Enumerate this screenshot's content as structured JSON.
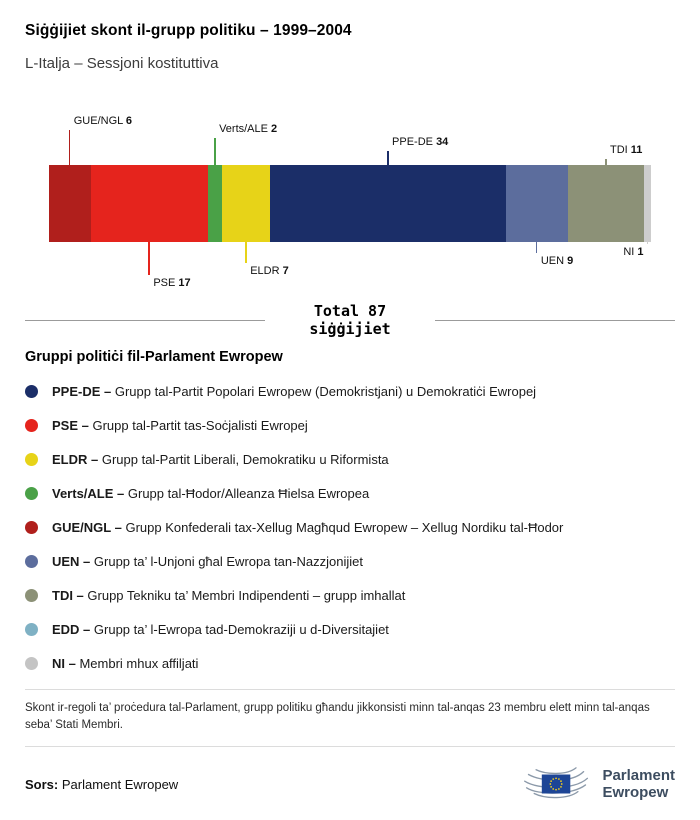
{
  "header": {
    "title": "Siġġijiet skont il-grupp politiku – 1999–2004",
    "subtitle": "L-Italja – Sessjoni kostituttiva"
  },
  "chart_data": {
    "type": "bar",
    "variant": "stacked-horizontal-single-bar",
    "title": "Siġġijiet skont il-grupp politiku – 1999–2004",
    "subtitle": "L-Italja – Sessjoni kostituttiva",
    "total_seats": 87,
    "total_line1": "Total 87",
    "total_line2": "siġġijiet",
    "segments": [
      {
        "group": "GUE/NGL",
        "seats": 6,
        "color": "#b01f1c",
        "label_position": "above"
      },
      {
        "group": "PSE",
        "seats": 17,
        "color": "#e5241d",
        "label_position": "below"
      },
      {
        "group": "Verts/ALE",
        "seats": 2,
        "color": "#4aa147",
        "label_position": "above"
      },
      {
        "group": "ELDR",
        "seats": 7,
        "color": "#e7d318",
        "label_position": "below"
      },
      {
        "group": "PPE-DE",
        "seats": 34,
        "color": "#1b2e68",
        "label_position": "above"
      },
      {
        "group": "UEN",
        "seats": 9,
        "color": "#5c6d9d",
        "label_position": "below"
      },
      {
        "group": "TDI",
        "seats": 11,
        "color": "#8c9177",
        "label_position": "above"
      },
      {
        "group": "NI",
        "seats": 1,
        "color": "#cdcdcd",
        "label_position": "below",
        "label_align": "right"
      }
    ]
  },
  "legend": {
    "title": "Gruppi politiċi fil-Parlament Ewropew",
    "items": [
      {
        "abbr": "PPE-DE –",
        "desc": "Grupp tal-Partit Popolari Ewropew (Demokristjani) u Demokratiċi Ewropej",
        "color": "#1b2e68"
      },
      {
        "abbr": "PSE –",
        "desc": "Grupp tal-Partit tas-Soċjalisti Ewropej",
        "color": "#e5241d"
      },
      {
        "abbr": "ELDR –",
        "desc": "Grupp tal-Partit Liberali, Demokratiku u Riformista",
        "color": "#e7d318"
      },
      {
        "abbr": "Verts/ALE –",
        "desc": "Grupp tal-Ħodor/Alleanza Ħielsa Ewropea",
        "color": "#4aa147"
      },
      {
        "abbr": "GUE/NGL –",
        "desc": "Grupp Konfederali tax-Xellug Magħqud Ewropew – Xellug Nordiku tal-Ħodor",
        "color": "#b01f1c"
      },
      {
        "abbr": "UEN –",
        "desc": "Grupp ta’ l-Unjoni għal Ewropa tan-Nazzjonijiet",
        "color": "#5c6d9d"
      },
      {
        "abbr": "TDI –",
        "desc": "Grupp Tekniku ta’ Membri Indipendenti – grupp imhallat",
        "color": "#8c9177"
      },
      {
        "abbr": "EDD –",
        "desc": "Grupp ta’ l-Ewropa tad-Demokraziji u d-Diversitajiet",
        "color": "#7fb1c4"
      },
      {
        "abbr": "NI –",
        "desc": "Membri mhux affiljati",
        "color": "#c4c4c4"
      }
    ]
  },
  "footer": {
    "note": "Skont ir-regoli ta’ proċedura tal-Parlament, grupp politiku għandu jikkonsisti minn tal-anqas 23 membru elett minn tal-anqas seba’ Stati Membri.",
    "source_label": "Sors:",
    "source_value": "Parlament Ewropew",
    "logo": {
      "line1": "Parlament",
      "line2": "Ewropew",
      "flag_blue": "#1d4596",
      "star_yellow": "#ffd617"
    }
  }
}
